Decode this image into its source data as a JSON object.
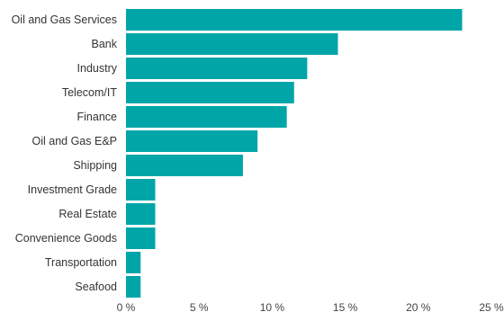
{
  "chart_data": {
    "type": "bar",
    "orientation": "horizontal",
    "categories": [
      "Oil and Gas Services",
      "Bank",
      "Industry",
      "Telecom/IT",
      "Finance",
      "Oil and Gas E&P",
      "Shipping",
      "Investment Grade",
      "Real Estate",
      "Convenience Goods",
      "Transportation",
      "Seafood"
    ],
    "values": [
      23.0,
      14.5,
      12.4,
      11.5,
      11.0,
      9.0,
      8.0,
      2.0,
      2.0,
      2.0,
      1.0,
      1.0
    ],
    "xlim": [
      0,
      25
    ],
    "xticks": [
      0,
      5,
      10,
      15,
      20,
      25
    ],
    "xtick_labels": [
      "0 %",
      "5 %",
      "10 %",
      "15 %",
      "20 %",
      "25 %"
    ],
    "title": "",
    "xlabel": "",
    "ylabel": "",
    "bar_color": "#00a5a8",
    "grid": false,
    "legend": "none"
  }
}
